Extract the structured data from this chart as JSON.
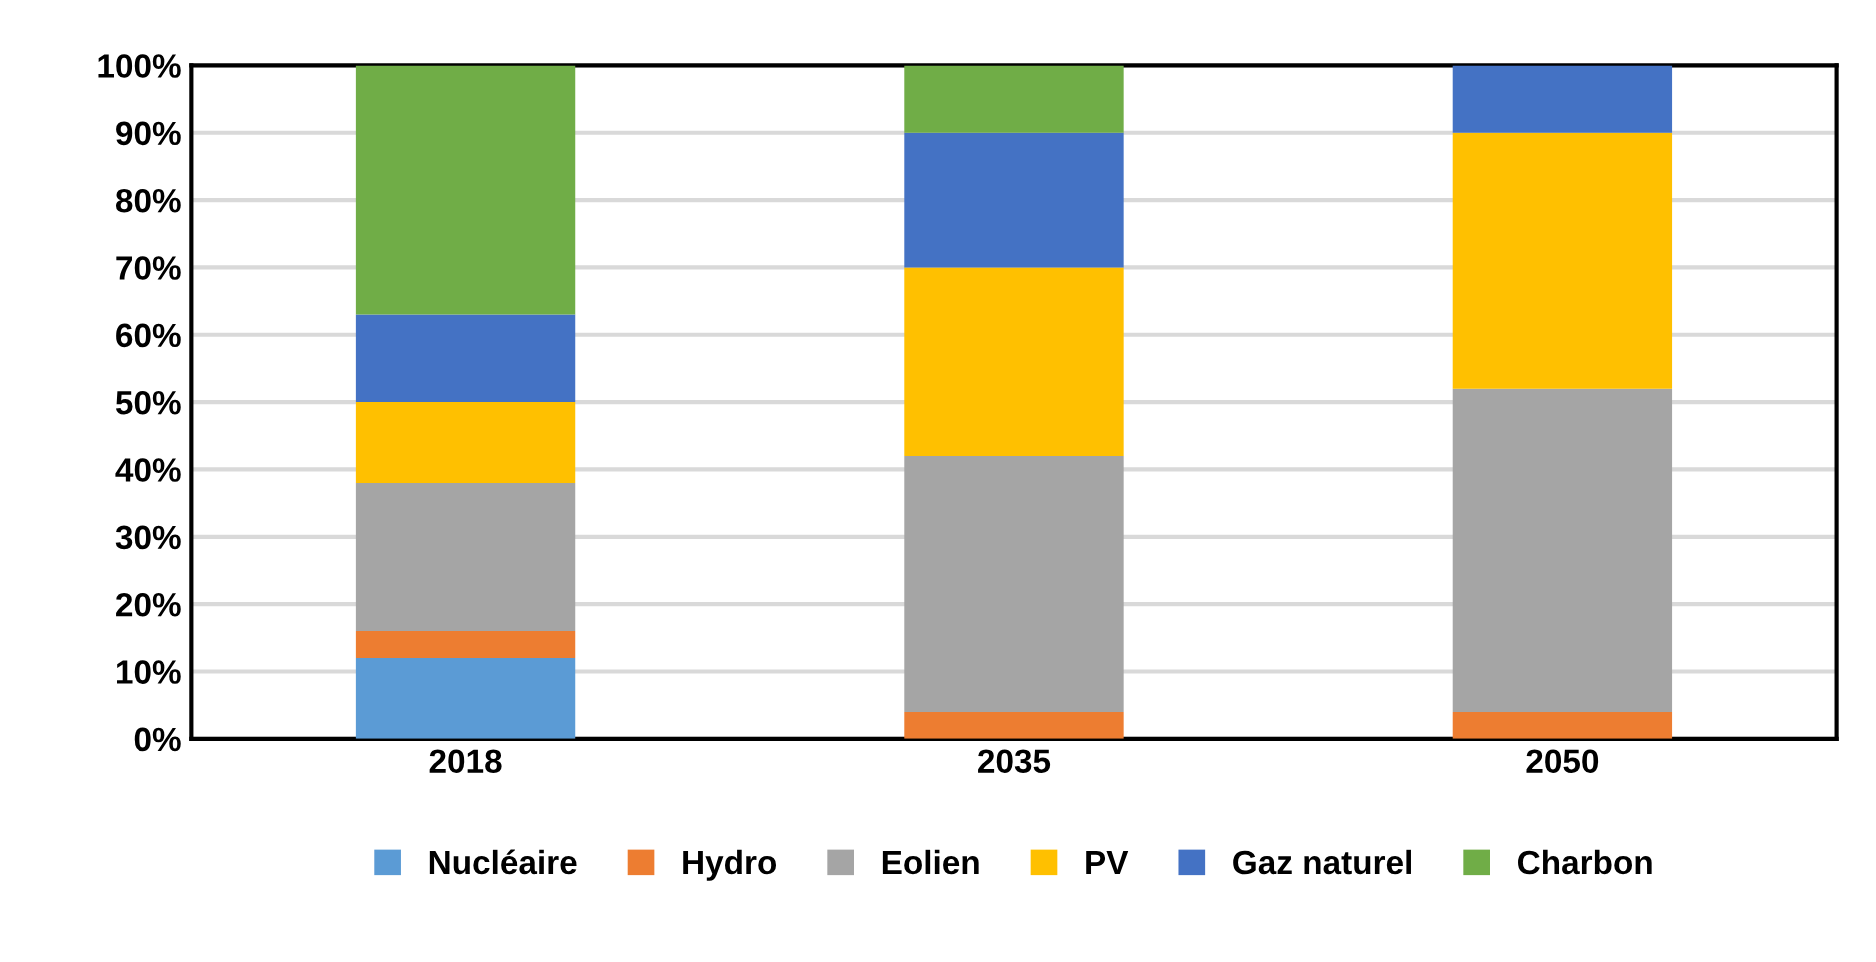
{
  "chart_data": {
    "type": "bar",
    "stacked": true,
    "categories": [
      "2018",
      "2035",
      "2050"
    ],
    "series": [
      {
        "name": "Nucléaire",
        "color": "#5b9bd5",
        "values": [
          12,
          0,
          0
        ]
      },
      {
        "name": "Hydro",
        "color": "#ed7d31",
        "values": [
          4,
          4,
          4
        ]
      },
      {
        "name": "Eolien",
        "color": "#a5a5a5",
        "values": [
          22,
          38,
          48
        ]
      },
      {
        "name": "PV",
        "color": "#ffc000",
        "values": [
          12,
          28,
          38
        ]
      },
      {
        "name": "Gaz naturel",
        "color": "#4472c4",
        "values": [
          13,
          20,
          10
        ]
      },
      {
        "name": "Charbon",
        "color": "#70ad47",
        "values": [
          37,
          10,
          0
        ]
      }
    ],
    "ylim": [
      0,
      100
    ],
    "yticks": [
      {
        "value": 0,
        "label": "0%"
      },
      {
        "value": 10,
        "label": "10%"
      },
      {
        "value": 20,
        "label": "20%"
      },
      {
        "value": 30,
        "label": "30%"
      },
      {
        "value": 40,
        "label": "40%"
      },
      {
        "value": 50,
        "label": "50%"
      },
      {
        "value": 60,
        "label": "60%"
      },
      {
        "value": 70,
        "label": "70%"
      },
      {
        "value": 80,
        "label": "80%"
      },
      {
        "value": 90,
        "label": "90%"
      },
      {
        "value": 100,
        "label": "100%"
      }
    ],
    "grid": "y",
    "legend": "bottom"
  }
}
